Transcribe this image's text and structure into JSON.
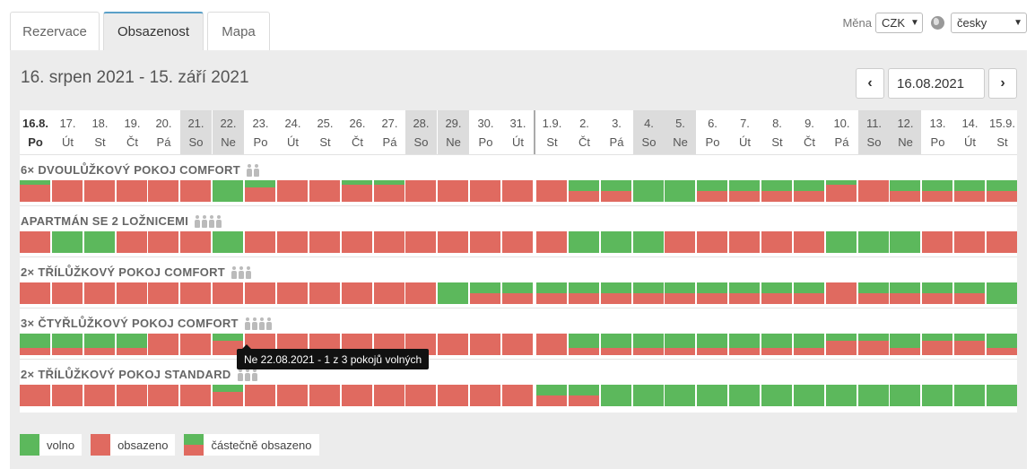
{
  "tabs": [
    "Rezervace",
    "Obsazenost",
    "Mapa"
  ],
  "currency_label": "Měna",
  "currency": "CZK",
  "language": "česky",
  "range_title": "16. srpen 2021 - 15. září 2021",
  "date_input": "16.08.2021",
  "nav": {
    "prev": "‹",
    "next": "›"
  },
  "days": [
    {
      "d": "16.8.",
      "w": "Po"
    },
    {
      "d": "17.",
      "w": "Út"
    },
    {
      "d": "18.",
      "w": "St"
    },
    {
      "d": "19.",
      "w": "Čt"
    },
    {
      "d": "20.",
      "w": "Pá"
    },
    {
      "d": "21.",
      "w": "So"
    },
    {
      "d": "22.",
      "w": "Ne"
    },
    {
      "d": "23.",
      "w": "Po"
    },
    {
      "d": "24.",
      "w": "Út"
    },
    {
      "d": "25.",
      "w": "St"
    },
    {
      "d": "26.",
      "w": "Čt"
    },
    {
      "d": "27.",
      "w": "Pá"
    },
    {
      "d": "28.",
      "w": "So"
    },
    {
      "d": "29.",
      "w": "Ne"
    },
    {
      "d": "30.",
      "w": "Po"
    },
    {
      "d": "31.",
      "w": "Út"
    },
    {
      "d": "1.9.",
      "w": "St"
    },
    {
      "d": "2.",
      "w": "Čt"
    },
    {
      "d": "3.",
      "w": "Pá"
    },
    {
      "d": "4.",
      "w": "So"
    },
    {
      "d": "5.",
      "w": "Ne"
    },
    {
      "d": "6.",
      "w": "Po"
    },
    {
      "d": "7.",
      "w": "Út"
    },
    {
      "d": "8.",
      "w": "St"
    },
    {
      "d": "9.",
      "w": "Čt"
    },
    {
      "d": "10.",
      "w": "Pá"
    },
    {
      "d": "11.",
      "w": "So"
    },
    {
      "d": "12.",
      "w": "Ne"
    },
    {
      "d": "13.",
      "w": "Po"
    },
    {
      "d": "14.",
      "w": "Út"
    },
    {
      "d": "15.9.",
      "w": "St"
    }
  ],
  "rooms": [
    {
      "name": "6× DVOULŮŽKOVÝ POKOJ COMFORT",
      "persons": 2,
      "cells": [
        0.2,
        0,
        0,
        0,
        0,
        0,
        1,
        0.33,
        0,
        0,
        0.2,
        0.2,
        0,
        0,
        0,
        0,
        0,
        0.5,
        0.5,
        1,
        1,
        0.5,
        0.5,
        0.5,
        0.5,
        0.2,
        0,
        0.5,
        0.5,
        0.5,
        0.5
      ]
    },
    {
      "name": "APARTMÁN SE 2 LOŽNICEMI",
      "persons": 4,
      "cells": [
        0,
        1,
        1,
        0,
        0,
        0,
        1,
        0,
        0,
        0,
        0,
        0,
        0,
        0,
        0,
        0,
        0,
        1,
        1,
        1,
        0,
        0,
        0,
        0,
        0,
        1,
        1,
        1,
        0,
        0,
        0
      ]
    },
    {
      "name": "2× TŘÍLŮŽKOVÝ POKOJ COMFORT",
      "persons": 3,
      "cells": [
        0,
        0,
        0,
        0,
        0,
        0,
        0,
        0,
        0,
        0,
        0,
        0,
        0,
        1,
        0.5,
        0.5,
        0.5,
        0.5,
        0.5,
        0.5,
        0.5,
        0.5,
        0.5,
        0.5,
        0.5,
        0,
        0.5,
        0.5,
        0.5,
        0.5,
        1
      ]
    },
    {
      "name": "3× ČTYŘLŮŽKOVÝ POKOJ COMFORT",
      "persons": 4,
      "cells": [
        0.67,
        0.67,
        0.67,
        0.67,
        0,
        0,
        0.33,
        0,
        0,
        0,
        0,
        0,
        0,
        0,
        0,
        0,
        0,
        0.67,
        0.67,
        0.67,
        0.67,
        0.67,
        0.67,
        0.67,
        0.67,
        0.33,
        0.33,
        0.67,
        0.33,
        0.33,
        0.67
      ]
    },
    {
      "name": "2× TŘÍLŮŽKOVÝ POKOJ STANDARD",
      "persons": 3,
      "cells": [
        0,
        0,
        0,
        0,
        0,
        0,
        0.33,
        0,
        0,
        0,
        0,
        0,
        0,
        0,
        0,
        0,
        0.5,
        0.5,
        1,
        1,
        1,
        1,
        1,
        1,
        1,
        1,
        1,
        1,
        1,
        1,
        1
      ]
    }
  ],
  "tooltip": "Ne 22.08.2021 - 1 z 3 pokojů volných",
  "legend": {
    "free": "volno",
    "occupied": "obsazeno",
    "partial": "částečně obsazeno"
  },
  "colors": {
    "free": "#5cb85c",
    "occupied": "#e06a60",
    "tab_accent": "#5aa0c8"
  }
}
